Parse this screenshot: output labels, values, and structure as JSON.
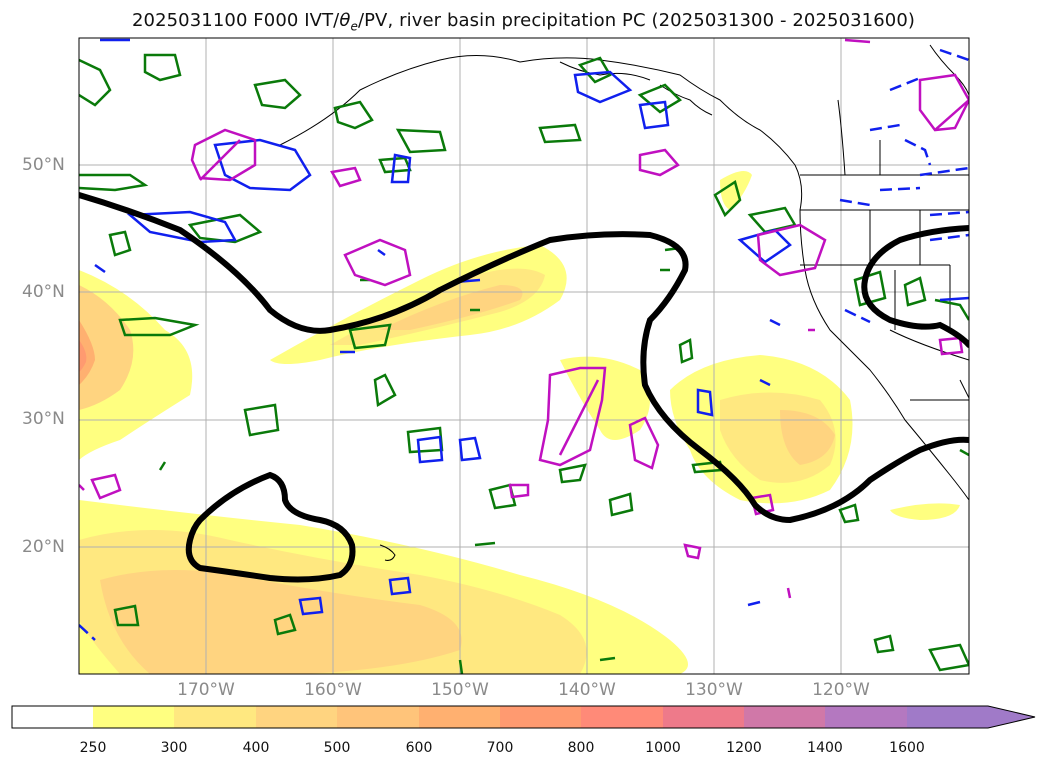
{
  "title": {
    "prefix": "2025031100 F000 IVT/",
    "theta": "θ",
    "theta_sub": "e",
    "suffix": "/PV, river basin precipitation PC (2025031300 - 2025031600)"
  },
  "map": {
    "lat_labels": [
      "50°N",
      "40°N",
      "30°N",
      "20°N"
    ],
    "lon_labels": [
      "170°W",
      "160°W",
      "150°W",
      "140°W",
      "130°W",
      "120°W"
    ],
    "colors": {
      "black_contour": "#000000",
      "green_contour": "#0a7a0a",
      "blue_contour": "#1020ee",
      "magenta_contour": "#c010c0",
      "gridline": "#b0b0b0",
      "coastline": "#000000",
      "axis_label": "#8a8a8a"
    }
  },
  "colorbar": {
    "ticks": [
      "250",
      "300",
      "400",
      "500",
      "600",
      "700",
      "800",
      "1000",
      "1200",
      "1400",
      "1600"
    ],
    "colors": [
      "#ffffff",
      "#ffff80",
      "#ffe880",
      "#ffd480",
      "#ffc47a",
      "#ffb070",
      "#ff9a70",
      "#ff8a78",
      "#ee7a8a",
      "#d078a8",
      "#b478c0",
      "#a07ac8"
    ],
    "extend": "max"
  }
}
